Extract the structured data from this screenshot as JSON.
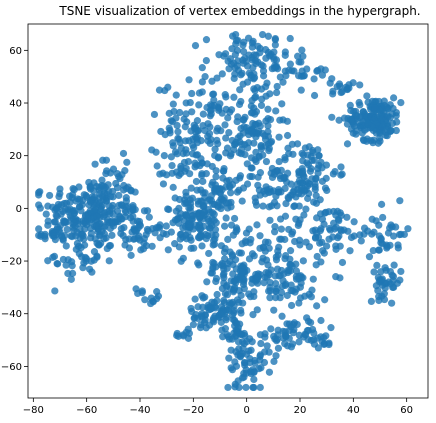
{
  "chart_data": {
    "type": "scatter",
    "title": "TSNE visualization of vertex embeddings in the hypergraph.",
    "xlabel": "",
    "ylabel": "",
    "xlim": [
      -82,
      68
    ],
    "ylim": [
      -72,
      70
    ],
    "xticks": [
      -80,
      -60,
      -40,
      -20,
      0,
      20,
      40,
      60
    ],
    "yticks": [
      -60,
      -40,
      -20,
      0,
      20,
      40,
      60
    ],
    "grid": false,
    "legend": "none",
    "point_color": "#1f77b4",
    "point_alpha": 0.8,
    "clusters": [
      {
        "center": [
          -58,
          -2
        ],
        "spread": [
          9,
          7
        ],
        "count": 260
      },
      {
        "center": [
          -72,
          -10
        ],
        "spread": [
          3,
          2
        ],
        "count": 20
      },
      {
        "center": [
          -62,
          -20
        ],
        "spread": [
          5,
          3
        ],
        "count": 30
      },
      {
        "center": [
          -40,
          -8
        ],
        "spread": [
          3,
          5
        ],
        "count": 35
      },
      {
        "center": [
          -52,
          15
        ],
        "spread": [
          3,
          3
        ],
        "count": 12
      },
      {
        "center": [
          -40,
          -32
        ],
        "spread": [
          1,
          1
        ],
        "count": 4
      },
      {
        "center": [
          -18,
          -5
        ],
        "spread": [
          7,
          6
        ],
        "count": 160
      },
      {
        "center": [
          -18,
          30
        ],
        "spread": [
          7,
          9
        ],
        "count": 130
      },
      {
        "center": [
          0,
          55
        ],
        "spread": [
          8,
          6
        ],
        "count": 90
      },
      {
        "center": [
          18,
          52
        ],
        "spread": [
          7,
          5
        ],
        "count": 40
      },
      {
        "center": [
          2,
          28
        ],
        "spread": [
          6,
          8
        ],
        "count": 100
      },
      {
        "center": [
          22,
          14
        ],
        "spread": [
          6,
          6
        ],
        "count": 90
      },
      {
        "center": [
          10,
          5
        ],
        "spread": [
          7,
          5
        ],
        "count": 50
      },
      {
        "center": [
          30,
          -8
        ],
        "spread": [
          8,
          5
        ],
        "count": 60
      },
      {
        "center": [
          48,
          34
        ],
        "spread": [
          5,
          4
        ],
        "count": 160
      },
      {
        "center": [
          36,
          46
        ],
        "spread": [
          2,
          2
        ],
        "count": 15
      },
      {
        "center": [
          52,
          -10
        ],
        "spread": [
          5,
          5
        ],
        "count": 40
      },
      {
        "center": [
          52,
          -28
        ],
        "spread": [
          3,
          3
        ],
        "count": 35
      },
      {
        "center": [
          -5,
          -25
        ],
        "spread": [
          6,
          7
        ],
        "count": 100
      },
      {
        "center": [
          15,
          -28
        ],
        "spread": [
          8,
          6
        ],
        "count": 80
      },
      {
        "center": [
          -12,
          -40
        ],
        "spread": [
          5,
          4
        ],
        "count": 70
      },
      {
        "center": [
          18,
          -48
        ],
        "spread": [
          6,
          3
        ],
        "count": 50
      },
      {
        "center": [
          0,
          -58
        ],
        "spread": [
          4,
          6
        ],
        "count": 60
      },
      {
        "center": [
          -25,
          -48
        ],
        "spread": [
          2,
          1
        ],
        "count": 8
      },
      {
        "center": [
          -35,
          -34
        ],
        "spread": [
          2,
          1
        ],
        "count": 8
      },
      {
        "center": [
          -3,
          -48
        ],
        "spread": [
          2,
          3
        ],
        "count": 25
      },
      {
        "center": [
          -10,
          10
        ],
        "spread": [
          5,
          4
        ],
        "count": 30
      },
      {
        "center": [
          10,
          -15
        ],
        "spread": [
          5,
          6
        ],
        "count": 40
      },
      {
        "center": [
          28,
          -50
        ],
        "spread": [
          2,
          1
        ],
        "count": 8
      },
      {
        "center": [
          -28,
          15
        ],
        "spread": [
          3,
          3
        ],
        "count": 15
      }
    ]
  }
}
